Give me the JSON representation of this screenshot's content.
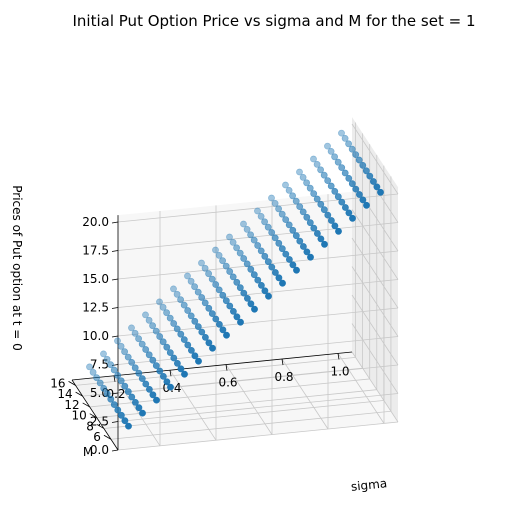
{
  "chart_data": {
    "type": "scatter",
    "title": "Initial Put Option Price vs sigma and M for the set = 1",
    "xlabel": "sigma",
    "ylabel": "M",
    "zlabel": "Prices of Put option at t = 0",
    "x_ticks": [
      "0.2",
      "0.4",
      "0.6",
      "0.8",
      "1.0"
    ],
    "y_ticks": [
      "6",
      "8",
      "10",
      "12",
      "14",
      "16"
    ],
    "z_ticks": [
      "0.0",
      "2.5",
      "5.0",
      "7.5",
      "10.0",
      "12.5",
      "15.0",
      "17.5",
      "20.0"
    ],
    "xlim": [
      0.05,
      1.05
    ],
    "ylim": [
      4,
      17
    ],
    "zlim": [
      0,
      20
    ],
    "sigma_range": [
      0.1,
      1.0
    ],
    "sigma_count": 19,
    "M_values": [
      5,
      6,
      7,
      8,
      9,
      10,
      11,
      12,
      13,
      14,
      15,
      16
    ],
    "price_at_sigma_0_1": 1.5,
    "price_at_sigma_1_0": 19.8,
    "marker_color": "#1f77b4",
    "grid": true
  }
}
